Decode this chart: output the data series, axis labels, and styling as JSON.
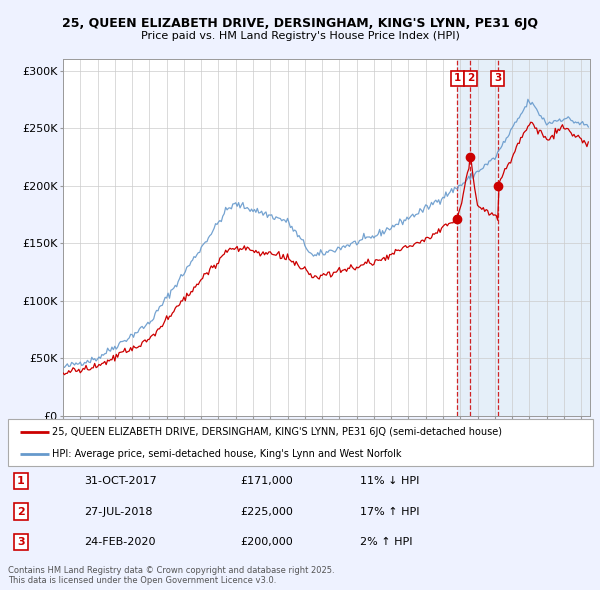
{
  "title1": "25, QUEEN ELIZABETH DRIVE, DERSINGHAM, KING'S LYNN, PE31 6JQ",
  "title2": "Price paid vs. HM Land Registry's House Price Index (HPI)",
  "bg_color": "#eef2ff",
  "plot_bg": "#ffffff",
  "plot_bg_right": "#dce8f8",
  "y_ticks": [
    0,
    50000,
    100000,
    150000,
    200000,
    250000,
    300000
  ],
  "y_labels": [
    "£0",
    "£50K",
    "£100K",
    "£150K",
    "£200K",
    "£250K",
    "£300K"
  ],
  "sale_year_nums": [
    2017.833,
    2018.583,
    2020.167
  ],
  "sale_prices": [
    171000,
    225000,
    200000
  ],
  "sale_labels": [
    "1",
    "2",
    "3"
  ],
  "legend_entries": [
    "25, QUEEN ELIZABETH DRIVE, DERSINGHAM, KING'S LYNN, PE31 6JQ (semi-detached house)",
    "HPI: Average price, semi-detached house, King's Lynn and West Norfolk"
  ],
  "table_rows": [
    [
      "1",
      "31-OCT-2017",
      "£171,000",
      "11% ↓ HPI"
    ],
    [
      "2",
      "27-JUL-2018",
      "£225,000",
      "17% ↑ HPI"
    ],
    [
      "3",
      "24-FEB-2020",
      "£200,000",
      "2% ↑ HPI"
    ]
  ],
  "footer": "Contains HM Land Registry data © Crown copyright and database right 2025.\nThis data is licensed under the Open Government Licence v3.0.",
  "hpi_line_color": "#6699cc",
  "price_line_color": "#cc0000",
  "dashed_vline_color": "#cc0000",
  "x_min": 1995,
  "x_max": 2025.5,
  "y_min": 0,
  "y_max": 310000,
  "shade_start": 2017.833
}
